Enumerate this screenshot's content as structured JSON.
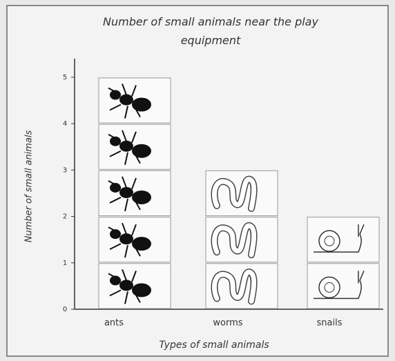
{
  "chart_data": {
    "type": "pictograph",
    "title": "Number of small animals near the play equipment",
    "x_label": "Types of small animals",
    "y_label": "Number of small animals",
    "categories": [
      "ants",
      "worms",
      "snails"
    ],
    "values": [
      5,
      3,
      2
    ],
    "ylim": [
      0,
      5.4
    ],
    "yticks": [
      0,
      1,
      2,
      3,
      4,
      5
    ]
  }
}
